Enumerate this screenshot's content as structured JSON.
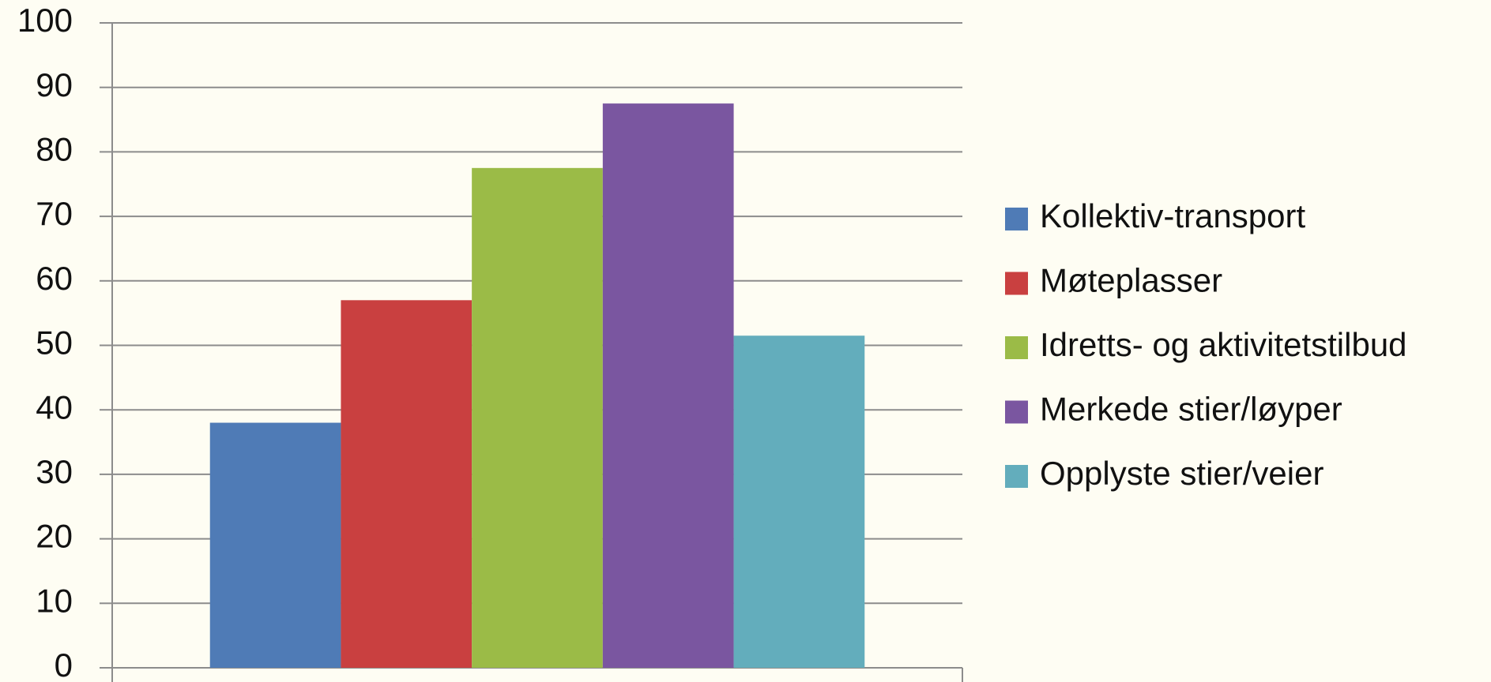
{
  "chart_data": {
    "type": "bar",
    "categories": [
      null
    ],
    "series": [
      {
        "name": "Kollektiv-transport",
        "color": "#4f7bb6",
        "values": [
          38
        ]
      },
      {
        "name": "Møteplasser",
        "color": "#c94040",
        "values": [
          57
        ]
      },
      {
        "name": "Idretts- og aktivitetstilbud",
        "color": "#9bbb47",
        "values": [
          77.5
        ]
      },
      {
        "name": "Merkede stier/løyper",
        "color": "#7a56a0",
        "values": [
          87.5
        ]
      },
      {
        "name": "Opplyste stier/veier",
        "color": "#63adbc",
        "values": [
          51.5
        ]
      }
    ],
    "ylim": [
      0,
      100
    ],
    "yticks": [
      0,
      10,
      20,
      30,
      40,
      50,
      60,
      70,
      80,
      90,
      100
    ],
    "grid": true,
    "legend": "right"
  }
}
